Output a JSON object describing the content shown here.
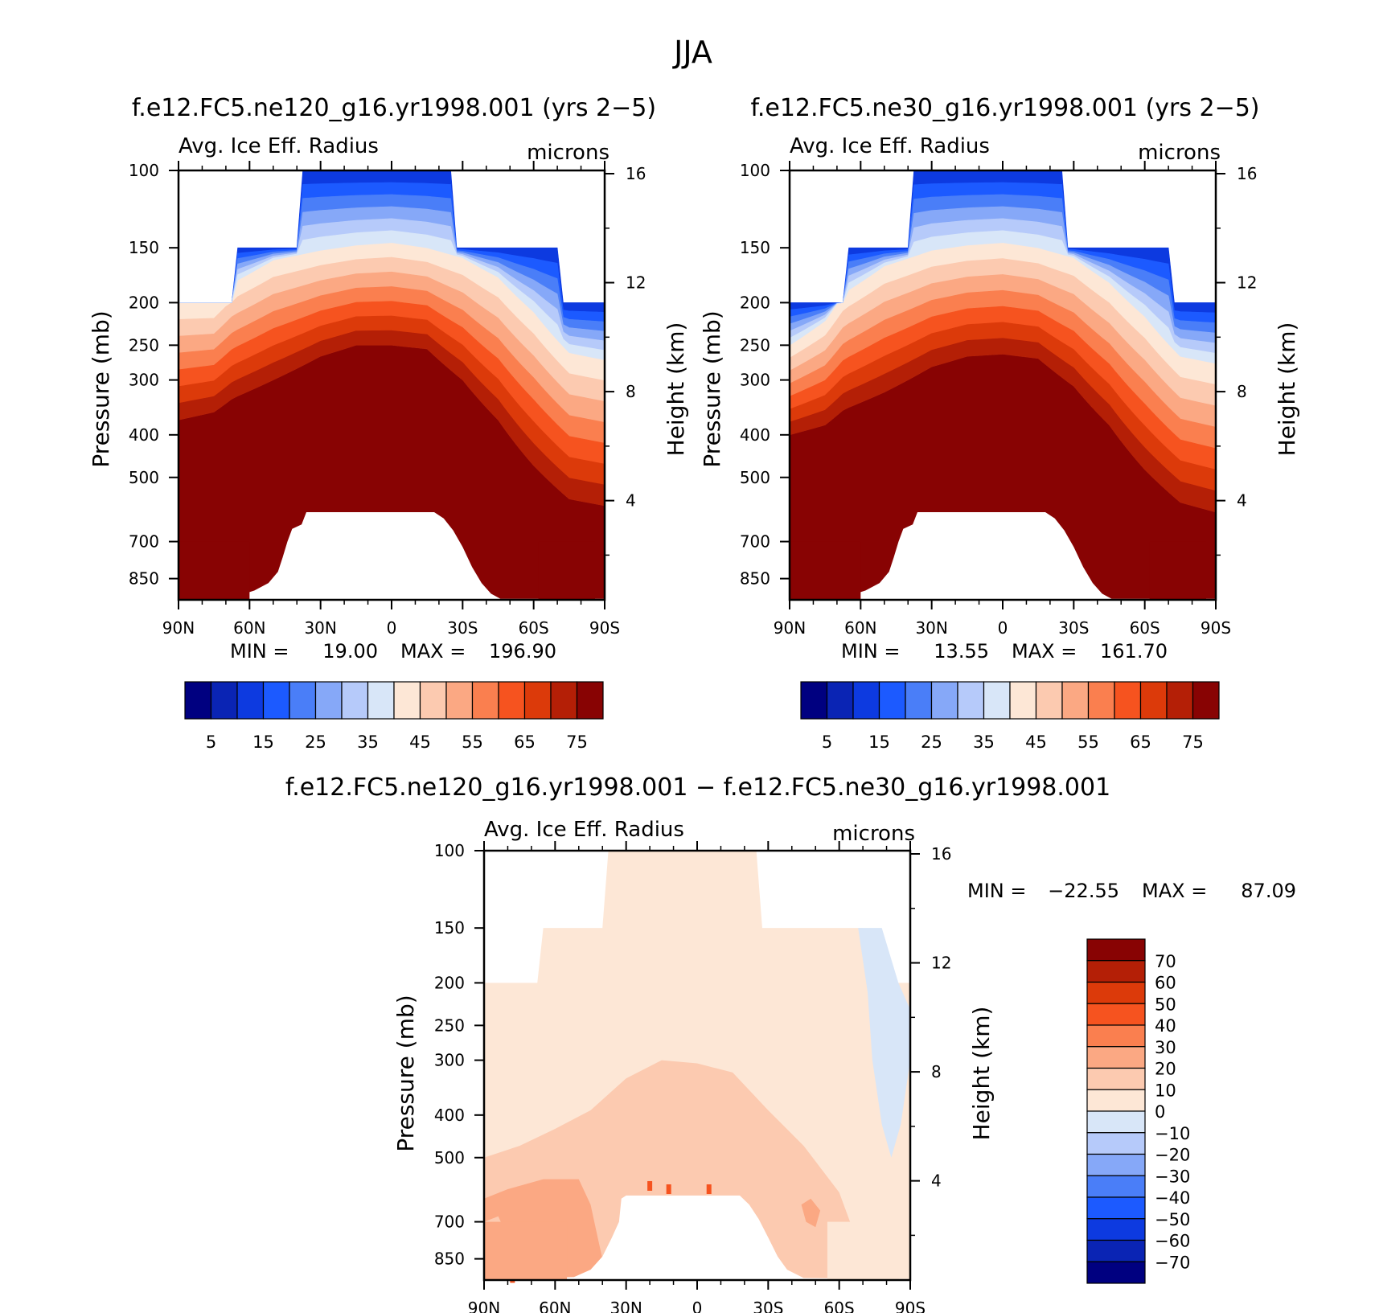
{
  "page_title": "JJA",
  "colors": {
    "levels": [
      "#000080",
      "#0a24b4",
      "#0d3ae0",
      "#1c5aff",
      "#4a7ef8",
      "#86a8f8",
      "#b6cafa",
      "#d8e6f8",
      "#fde7d6",
      "#fccab0",
      "#fba883",
      "#fa7f4f",
      "#f6531f",
      "#dc3a0a",
      "#b41f06",
      "#880303"
    ]
  },
  "chart_data": [
    {
      "id": "panel-left",
      "type": "contour",
      "title": "f.e12.FC5.ne120_g16.yr1998.001 (yrs 2−5)",
      "variable": "Avg. Ice Eff. Radius",
      "units": "microns",
      "ylabel": "Pressure (mb)",
      "y2label": "Height (km)",
      "x_ticks": [
        "90N",
        "60N",
        "30N",
        "0",
        "30S",
        "60S",
        "90S"
      ],
      "x_values": [
        90,
        60,
        30,
        0,
        -30,
        -60,
        -90
      ],
      "y_ticks": [
        100,
        150,
        200,
        250,
        300,
        400,
        500,
        700,
        850
      ],
      "y2_ticks": [
        16,
        12,
        8,
        4
      ],
      "ylim": [
        100,
        950
      ],
      "min_label": "MIN = ",
      "min_value": "19.00",
      "max_label": "MAX = ",
      "max_value": "196.90",
      "colorbar_labels": [
        "5",
        "15",
        "25",
        "35",
        "45",
        "55",
        "65",
        "75"
      ],
      "contour_levels": [
        0,
        5,
        10,
        15,
        20,
        25,
        30,
        35,
        40,
        45,
        50,
        55,
        60,
        65,
        70,
        75
      ],
      "data_region_top_mb": {
        "tropics_30N_30S": 100,
        "midlat": 150,
        "polar": 200
      },
      "contour_boundaries_mb": {
        "lat": [
          90,
          75,
          67,
          50,
          30,
          15,
          0,
          -15,
          -30,
          -45,
          -60,
          -75,
          -90
        ],
        "values_45": [
          200,
          200,
          180,
          160,
          152,
          148,
          146,
          150,
          158,
          175,
          210,
          260,
          270
        ],
        "values_75": [
          370,
          355,
          330,
          300,
          265,
          250,
          250,
          255,
          300,
          370,
          470,
          560,
          580
        ]
      }
    },
    {
      "id": "panel-right",
      "type": "contour",
      "title": "f.e12.FC5.ne30_g16.yr1998.001 (yrs 2−5)",
      "variable": "Avg. Ice Eff. Radius",
      "units": "microns",
      "ylabel": "Pressure (mb)",
      "y2label": "Height (km)",
      "x_ticks": [
        "90N",
        "60N",
        "30N",
        "0",
        "30S",
        "60S",
        "90S"
      ],
      "x_values": [
        90,
        60,
        30,
        0,
        -30,
        -60,
        -90
      ],
      "y_ticks": [
        100,
        150,
        200,
        250,
        300,
        400,
        500,
        700,
        850
      ],
      "y2_ticks": [
        16,
        12,
        8,
        4
      ],
      "ylim": [
        100,
        950
      ],
      "min_label": "MIN = ",
      "min_value": "13.55",
      "max_label": "MAX = ",
      "max_value": "161.70",
      "colorbar_labels": [
        "5",
        "15",
        "25",
        "35",
        "45",
        "55",
        "65",
        "75"
      ],
      "contour_levels": [
        0,
        5,
        10,
        15,
        20,
        25,
        30,
        35,
        40,
        45,
        50,
        55,
        60,
        65,
        70,
        75
      ],
      "data_region_top_mb": {
        "tropics_30N_30S": 100,
        "midlat": 150,
        "polar": 200
      },
      "contour_boundaries_mb": {
        "lat": [
          90,
          75,
          67,
          50,
          30,
          15,
          0,
          -15,
          -30,
          -45,
          -60,
          -75,
          -90
        ],
        "values_45": [
          250,
          220,
          190,
          165,
          152,
          148,
          146,
          150,
          158,
          180,
          215,
          265,
          275
        ],
        "values_75": [
          400,
          380,
          350,
          320,
          280,
          265,
          262,
          268,
          310,
          380,
          480,
          570,
          600
        ]
      }
    },
    {
      "id": "panel-diff",
      "type": "contour",
      "title": "f.e12.FC5.ne120_g16.yr1998.001 − f.e12.FC5.ne30_g16.yr1998.001",
      "variable": "Avg. Ice Eff. Radius",
      "units": "microns",
      "ylabel": "Pressure (mb)",
      "y2label": "Height (km)",
      "x_ticks": [
        "90N",
        "60N",
        "30N",
        "0",
        "30S",
        "60S",
        "90S"
      ],
      "x_values": [
        90,
        60,
        30,
        0,
        -30,
        -60,
        -90
      ],
      "y_ticks": [
        100,
        150,
        200,
        250,
        300,
        400,
        500,
        700,
        850
      ],
      "y2_ticks": [
        16,
        12,
        8,
        4
      ],
      "ylim": [
        100,
        950
      ],
      "min_label": "MIN = ",
      "min_value": "−22.55",
      "max_label": "MAX = ",
      "max_value": "87.09",
      "colorbar_labels": [
        "70",
        "60",
        "50",
        "40",
        "30",
        "20",
        "10",
        "0",
        "−10",
        "−20",
        "−30",
        "−40",
        "−50",
        "−60",
        "−70"
      ],
      "contour_levels": [
        -70,
        -60,
        -50,
        -40,
        -30,
        -20,
        -10,
        0,
        10,
        20,
        30,
        40,
        50,
        60,
        70
      ]
    }
  ]
}
